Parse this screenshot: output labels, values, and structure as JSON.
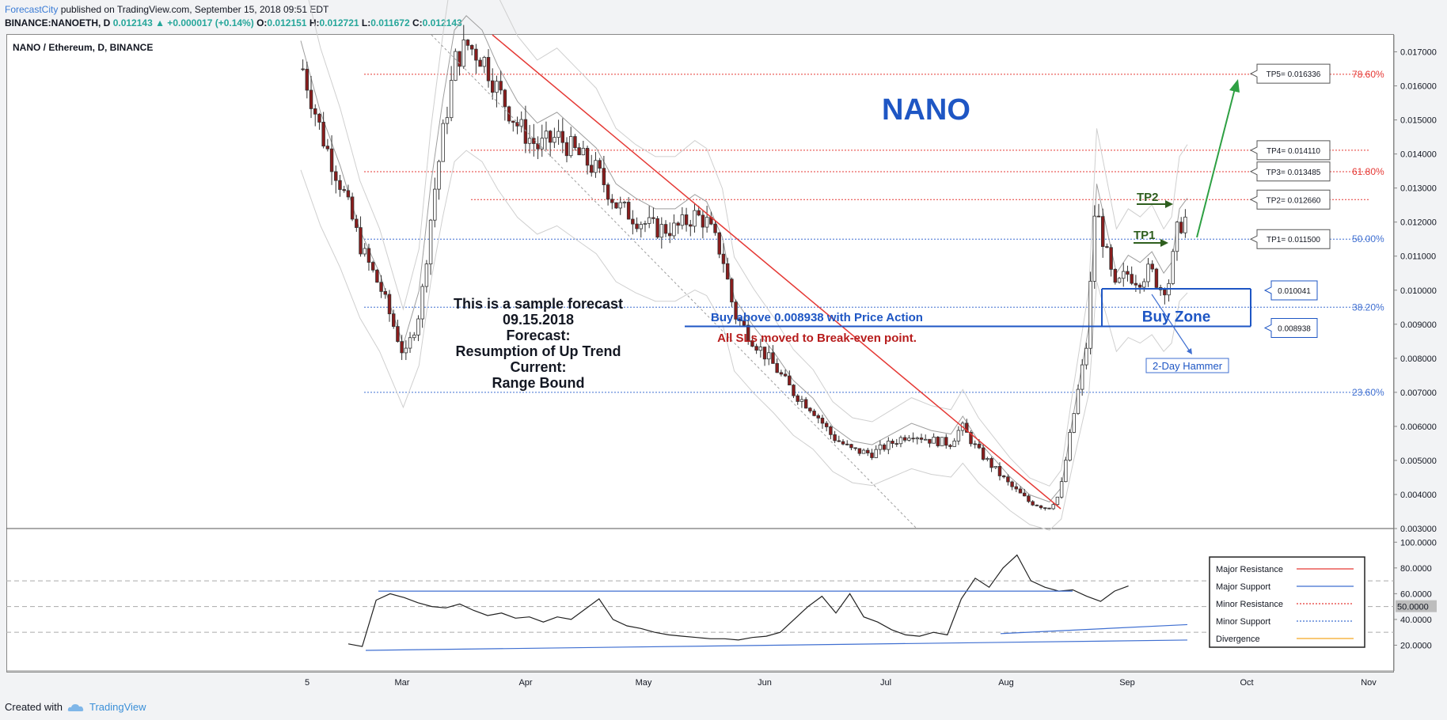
{
  "header": {
    "author": "ForecastCity",
    "published": " published on TradingView.com, September 15, 2018 09:51 EDT"
  },
  "quote": {
    "symbol": "BINANCE:NANOETH, D",
    "last": "0.012143",
    "change": "▲ +0.000017 (+0.14%)",
    "o_label": "O:",
    "o": "0.012151",
    "h_label": "H:",
    "h": "0.012721",
    "l_label": "L:",
    "l": "0.011672",
    "c_label": "C:",
    "c": "0.012143"
  },
  "chart_data": [
    {
      "type": "candlestick",
      "title": "NANO / Ethereum, D, BINANCE",
      "watermark": "NANO",
      "ylim": [
        0.003,
        0.0175
      ],
      "y_ticks": [
        "0.017000",
        "0.016000",
        "0.015000",
        "0.014000",
        "0.013000",
        "0.012000",
        "0.011000",
        "0.010000",
        "0.009000",
        "0.008000",
        "0.007000",
        "0.006000",
        "0.005000",
        "0.004000",
        "0.003000"
      ],
      "x_ticks": [
        "5",
        "Mar",
        "Apr",
        "May",
        "Jun",
        "Jul",
        "Aug",
        "Sep",
        "Oct",
        "Nov"
      ],
      "fib_levels": [
        {
          "label": "78.60%",
          "value": 0.01634,
          "color": "#e53935"
        },
        {
          "label": "61.80%",
          "value": 0.01348,
          "color": "#e53935"
        },
        {
          "label": "50.00%",
          "value": 0.0115,
          "color": "#3f6fd1"
        },
        {
          "label": "38.20%",
          "value": 0.0095,
          "color": "#3f6fd1"
        },
        {
          "label": "23.60%",
          "value": 0.007,
          "color": "#3f6fd1"
        }
      ],
      "targets": [
        {
          "label": "TP5= 0.016336",
          "value": 0.016336
        },
        {
          "label": "TP4= 0.014110",
          "value": 0.01411
        },
        {
          "label": "TP3= 0.013485",
          "value": 0.013485
        },
        {
          "label": "TP2= 0.012660",
          "value": 0.01266
        },
        {
          "label": "TP1= 0.011500",
          "value": 0.0115
        }
      ],
      "buy_zone": {
        "upper": "0.010041",
        "lower": "0.008938",
        "label": "Buy Zone"
      },
      "annotations": {
        "tp1": "TP1",
        "tp2": "TP2",
        "buy_above": "Buy above 0.008938 with Price Action",
        "sl_moved": "All SLs moved to Break-even point.",
        "hammer": "2-Day Hammer",
        "forecast_lines": [
          "This is a sample forecast",
          "09.15.2018",
          "Forecast:",
          "Resumption of Up Trend",
          "Current:",
          "Range Bound"
        ]
      },
      "close_path": [
        [
          0,
          0.0165
        ],
        [
          0.5,
          0.0145
        ],
        [
          1,
          0.013
        ],
        [
          1.5,
          0.0112
        ],
        [
          2,
          0.01
        ],
        [
          2.6,
          0.008
        ],
        [
          3.0,
          0.0095
        ],
        [
          3.3,
          0.0125
        ],
        [
          3.6,
          0.0148
        ],
        [
          3.9,
          0.0168
        ],
        [
          4.2,
          0.0172
        ],
        [
          4.6,
          0.0168
        ],
        [
          5.0,
          0.0158
        ],
        [
          5.5,
          0.0148
        ],
        [
          6.0,
          0.0142
        ],
        [
          6.5,
          0.0145
        ],
        [
          7.0,
          0.014
        ],
        [
          7.5,
          0.0135
        ],
        [
          8.0,
          0.0125
        ],
        [
          8.5,
          0.0121
        ],
        [
          9.0,
          0.0118
        ],
        [
          9.5,
          0.0118
        ],
        [
          10.0,
          0.0122
        ],
        [
          10.3,
          0.012
        ],
        [
          10.7,
          0.011
        ],
        [
          11.0,
          0.0093
        ],
        [
          11.5,
          0.0085
        ],
        [
          12.0,
          0.0078
        ],
        [
          12.5,
          0.007
        ],
        [
          13.0,
          0.0065
        ],
        [
          13.5,
          0.0057
        ],
        [
          14.0,
          0.0053
        ],
        [
          14.5,
          0.0052
        ],
        [
          15.0,
          0.0055
        ],
        [
          15.5,
          0.0058
        ],
        [
          16.0,
          0.0056
        ],
        [
          16.5,
          0.0055
        ],
        [
          16.8,
          0.006
        ],
        [
          17.2,
          0.0053
        ],
        [
          17.6,
          0.0048
        ],
        [
          18.0,
          0.0043
        ],
        [
          18.5,
          0.0038
        ],
        [
          19.0,
          0.0036
        ],
        [
          19.3,
          0.004
        ],
        [
          19.6,
          0.006
        ],
        [
          20.0,
          0.0085
        ],
        [
          20.2,
          0.0125
        ],
        [
          20.4,
          0.0115
        ],
        [
          20.7,
          0.01
        ],
        [
          21.0,
          0.0105
        ],
        [
          21.3,
          0.0103
        ],
        [
          21.6,
          0.0106
        ],
        [
          21.9,
          0.01
        ],
        [
          22.1,
          0.0103
        ],
        [
          22.3,
          0.0118
        ],
        [
          22.5,
          0.0121
        ]
      ],
      "x_span": [
        0,
        22.5
      ]
    },
    {
      "type": "line",
      "title": "",
      "ylim": [
        0,
        110
      ],
      "y_ticks": [
        "100.0000",
        "80.0000",
        "60.0000",
        "40.0000",
        "20.0000"
      ],
      "level_badge": "50.0000",
      "x": [
        0,
        0.4,
        0.8,
        1.2,
        1.6,
        2,
        2.4,
        2.8,
        3.2,
        3.6,
        4,
        4.4,
        4.8,
        5.2,
        5.6,
        6,
        6.4,
        6.8,
        7.2,
        7.6,
        8,
        8.4,
        8.8,
        9.2,
        9.6,
        10,
        10.4,
        10.8,
        11.2,
        11.6,
        12,
        12.4,
        12.8,
        13.2,
        13.6,
        14,
        14.4,
        14.8,
        15.2,
        15.6,
        16,
        16.4,
        16.8,
        17.2,
        17.6,
        18,
        18.4,
        18.8,
        19.2,
        19.6,
        20,
        20.4,
        20.8,
        21.2,
        21.6,
        22,
        22.4
      ],
      "values": [
        21,
        19,
        55,
        60,
        57,
        53,
        50,
        49,
        52,
        47,
        43,
        45,
        41,
        42,
        38,
        42,
        40,
        48,
        56,
        40,
        35,
        33,
        30,
        28,
        27,
        26,
        25,
        25,
        24,
        26,
        27,
        30,
        40,
        50,
        58,
        45,
        60,
        42,
        38,
        32,
        28,
        27,
        30,
        28,
        56,
        72,
        65,
        80,
        90,
        70,
        65,
        62,
        63,
        58,
        54,
        62,
        66
      ],
      "legend": [
        {
          "name": "Major Resistance",
          "color": "#e53935",
          "style": "solid"
        },
        {
          "name": "Major Support",
          "color": "#3f6fd1",
          "style": "solid"
        },
        {
          "name": "Minor Resistance",
          "color": "#e53935",
          "style": "dotted"
        },
        {
          "name": "Minor Support",
          "color": "#3f6fd1",
          "style": "dotted"
        },
        {
          "name": "Divergence",
          "color": "#f5a623",
          "style": "solid"
        }
      ]
    }
  ],
  "footer": {
    "created": "Created with",
    "brand": "TradingView"
  },
  "colors": {
    "bull": "#ffffff",
    "bear": "#8b1c1c",
    "resistance": "#e53935",
    "support": "#3f6fd1",
    "target_arrow": "#2e7d32",
    "brand_blue": "#1e56c4"
  }
}
